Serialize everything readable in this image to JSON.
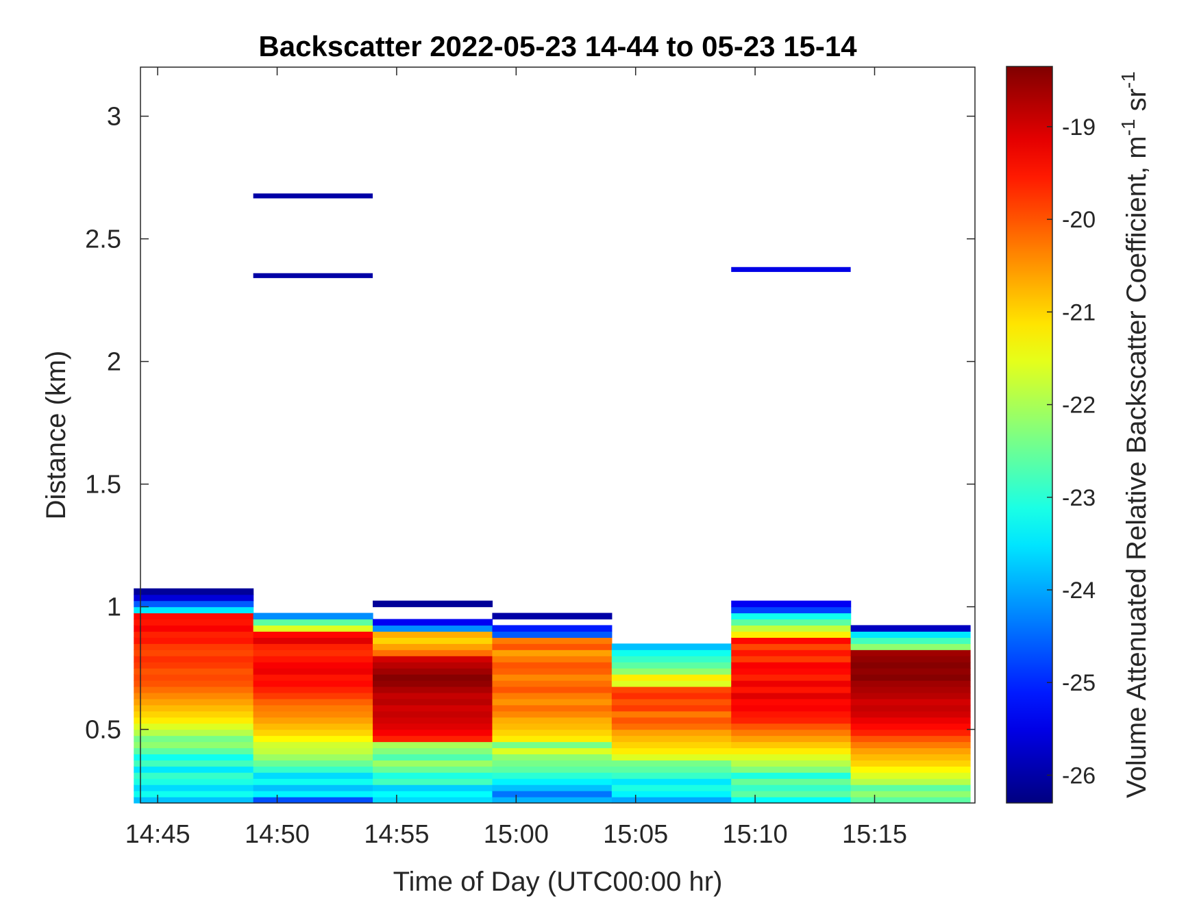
{
  "chart_data": {
    "type": "heatmap",
    "title": "Backscatter 2022-05-23 14-44 to 05-23 15-14",
    "xlabel": "Time of Day (UTC00:00 hr)",
    "ylabel": "Distance (km)",
    "x_ticks": [
      "14:45",
      "14:50",
      "14:55",
      "15:00",
      "15:05",
      "15:10",
      "15:15"
    ],
    "x_tick_minutes": [
      45,
      50,
      55,
      60,
      65,
      70,
      75
    ],
    "xlim_minutes": [
      44.28,
      79.2
    ],
    "y_ticks": [
      "0.5",
      "1",
      "1.5",
      "2",
      "2.5",
      "3"
    ],
    "y_tick_values": [
      0.5,
      1,
      1.5,
      2,
      2.5,
      3
    ],
    "ylim": [
      0.2,
      3.2
    ],
    "colorbar": {
      "label": "Volume Attenuated Relative Backscatter Coefficient, m",
      "label_sup1": "-1",
      "label_mid": " sr",
      "label_sup2": "-1",
      "ticks": [
        "-19",
        "-20",
        "-21",
        "-22",
        "-23",
        "-24",
        "-25",
        "-26"
      ],
      "tick_values": [
        -19,
        -20,
        -21,
        -22,
        -23,
        -24,
        -25,
        -26
      ],
      "clim": [
        -26.3,
        -18.35
      ],
      "colormap": "jet"
    },
    "bin_km": 0.025,
    "columns": [
      {
        "start": "14:44",
        "end": "14:49",
        "bottom_km": 0.2,
        "values": [
          -23.8,
          -23.2,
          -23.6,
          -23.1,
          -22.9,
          -23.5,
          -22.8,
          -23.2,
          -22.6,
          -22.2,
          -22.4,
          -21.9,
          -21.6,
          -21.2,
          -21.0,
          -20.8,
          -20.6,
          -20.4,
          -20.2,
          -20.0,
          -19.9,
          -20.0,
          -19.8,
          -19.7,
          -19.9,
          -19.8,
          -19.5,
          -19.6,
          -19.3,
          -19.5,
          -19.4,
          -23.5,
          -24.6,
          -25.6,
          -26.1
        ]
      },
      {
        "start": "14:49",
        "end": "14:54",
        "bottom_km": 0.2,
        "values": [
          -24.7,
          -23.4,
          -23.8,
          -23.2,
          -23.6,
          -22.9,
          -22.5,
          -22.1,
          -21.8,
          -21.7,
          -21.3,
          -21.0,
          -20.8,
          -20.6,
          -20.4,
          -20.3,
          -20.1,
          -19.8,
          -19.6,
          -19.4,
          -19.5,
          -19.2,
          -19.3,
          -19.5,
          -19.7,
          -19.6,
          -19.1,
          -19.4,
          -21.6,
          -22.6,
          -24.2
        ]
      },
      {
        "start": "14:54",
        "end": "14:59",
        "bottom_km": 0.2,
        "values": [
          -23.6,
          -23.3,
          -23.7,
          -22.8,
          -23.1,
          -22.5,
          -22.1,
          -22.7,
          -22.3,
          -22.0,
          -19.6,
          -19.3,
          -19.1,
          -19.0,
          -18.9,
          -19.0,
          -18.8,
          -18.9,
          -18.7,
          -18.5,
          -18.4,
          -18.6,
          -18.8,
          -19.0,
          -20.2,
          -20.6,
          -21.0,
          -20.7,
          -24.2,
          -25.4,
          null,
          null,
          -26.1
        ]
      },
      {
        "start": "14:59",
        "end": "15:04",
        "bottom_km": 0.2,
        "values": [
          -23.9,
          -24.4,
          -23.8,
          -23.4,
          -23.0,
          -22.6,
          -22.4,
          -22.2,
          -21.6,
          -22.4,
          -21.2,
          -21.0,
          -20.8,
          -20.7,
          -20.4,
          -20.2,
          -20.5,
          -20.3,
          -20.0,
          -20.2,
          -20.4,
          -20.1,
          -20.0,
          -20.3,
          -20.6,
          -20.0,
          -20.3,
          -24.6,
          -25.1,
          null,
          -26.0
        ]
      },
      {
        "start": "15:04",
        "end": "15:09",
        "bottom_km": 0.2,
        "values": [
          -24.0,
          -23.4,
          -23.1,
          -23.5,
          -22.9,
          -22.6,
          -22.4,
          -21.6,
          -21.2,
          -21.0,
          -20.8,
          -20.6,
          -20.2,
          -20.0,
          -20.3,
          -19.8,
          -20.0,
          -19.7,
          -19.9,
          -21.6,
          -21.2,
          -22.2,
          -22.6,
          -22.9,
          -23.2,
          -23.8
        ]
      },
      {
        "start": "15:09",
        "end": "15:14",
        "bottom_km": 0.2,
        "values": [
          -23.3,
          -22.6,
          -22.9,
          -22.5,
          -23.1,
          -22.3,
          -21.9,
          -21.6,
          -21.2,
          -20.9,
          -20.6,
          -20.3,
          -20.0,
          -19.6,
          -19.5,
          -19.3,
          -19.4,
          -19.1,
          -19.5,
          -19.2,
          -19.6,
          -19.4,
          -19.3,
          -19.8,
          -19.5,
          -19.9,
          -19.4,
          -21.2,
          -21.8,
          -22.6,
          -23.2,
          -24.8,
          -25.4
        ]
      },
      {
        "start": "15:14",
        "end": "15:19",
        "bottom_km": 0.2,
        "values": [
          -22.6,
          -22.2,
          -22.6,
          -21.9,
          -21.6,
          -21.3,
          -21.0,
          -20.8,
          -20.6,
          -20.3,
          -20.0,
          -19.6,
          -19.4,
          -19.2,
          -19.0,
          -18.9,
          -19.0,
          -18.8,
          -18.7,
          -18.6,
          -18.4,
          -18.5,
          -18.4,
          -18.5,
          -18.6,
          -22.2,
          -22.8,
          -23.5,
          -25.8
        ]
      }
    ],
    "elevated_layers": [
      {
        "start": "14:49",
        "end": "14:54",
        "distance_km": 2.675,
        "value": -26.0
      },
      {
        "start": "14:49",
        "end": "14:54",
        "distance_km": 2.35,
        "value": -26.0
      },
      {
        "start": "15:09",
        "end": "15:14",
        "distance_km": 2.375,
        "value": -25.5
      }
    ]
  }
}
